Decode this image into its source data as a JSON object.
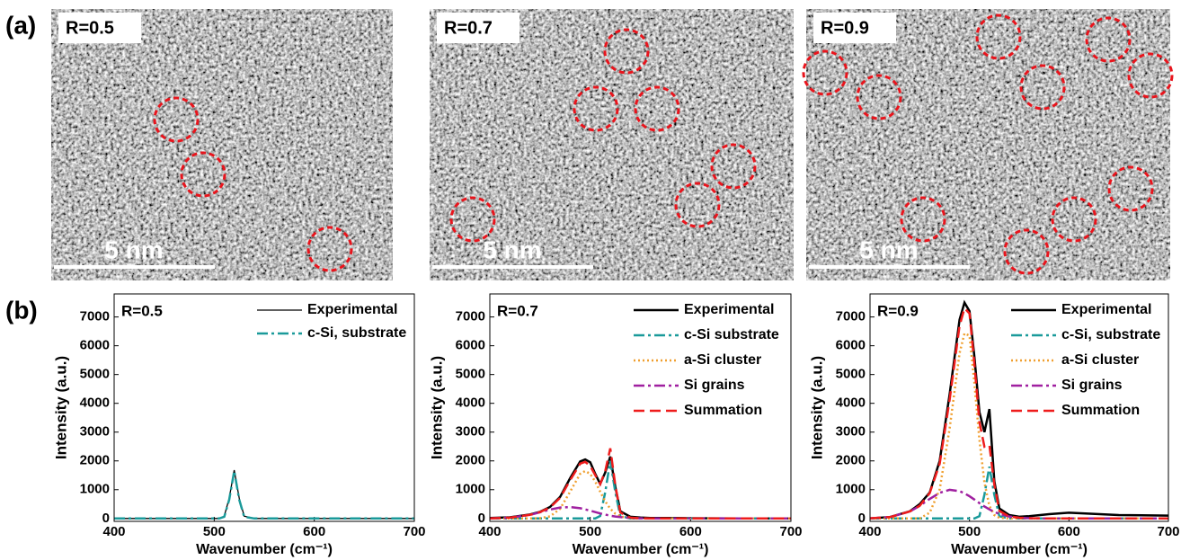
{
  "figure": {
    "panel_a_label": "(a)",
    "panel_b_label": "(b)",
    "images": [
      {
        "label": "R=0.5",
        "scale_bar": "5 nm"
      },
      {
        "label": "R=0.7",
        "scale_bar": "5 nm"
      },
      {
        "label": "R=0.9",
        "scale_bar": "5 nm"
      }
    ]
  },
  "chart_data": [
    {
      "type": "line",
      "annotation": "R=0.5",
      "x_label": "Wavenumber (cm⁻¹)",
      "y_label": "Intensity (a.u.)",
      "xlim": [
        400,
        700
      ],
      "xticks": [
        400,
        500,
        600,
        700
      ],
      "ylim": [
        -100,
        7800
      ],
      "yticks": [
        0,
        1000,
        2000,
        3000,
        4000,
        5000,
        6000,
        7000
      ],
      "legend": "upper right",
      "x": [
        400,
        420,
        440,
        450,
        460,
        470,
        480,
        490,
        495,
        500,
        505,
        510,
        515,
        520,
        525,
        530,
        540,
        550,
        560,
        580,
        600,
        650,
        700
      ],
      "series": [
        {
          "name": "Experimental",
          "color": "#000000",
          "dash": "solid",
          "linewidth": 1.3,
          "values": [
            0,
            0,
            0,
            0,
            0,
            0,
            0,
            0,
            0,
            0,
            0,
            80,
            700,
            1680,
            700,
            80,
            0,
            0,
            0,
            0,
            0,
            0,
            0
          ]
        },
        {
          "name": "c-Si, substrate",
          "color": "#1a9a9a",
          "dash": "dashdot",
          "linewidth": 2.5,
          "values": [
            0,
            0,
            0,
            0,
            0,
            0,
            0,
            0,
            0,
            0,
            0,
            60,
            650,
            1650,
            650,
            60,
            0,
            0,
            0,
            0,
            0,
            0,
            0
          ]
        }
      ]
    },
    {
      "type": "line",
      "annotation": "R=0.7",
      "x_label": "Wavenumber (cm⁻¹)",
      "y_label": "Intensity (a.u.)",
      "xlim": [
        400,
        700
      ],
      "xticks": [
        400,
        500,
        600,
        700
      ],
      "ylim": [
        -100,
        7800
      ],
      "yticks": [
        0,
        1000,
        2000,
        3000,
        4000,
        5000,
        6000,
        7000
      ],
      "legend": "upper right",
      "x": [
        400,
        420,
        440,
        450,
        460,
        470,
        480,
        490,
        495,
        500,
        505,
        510,
        515,
        520,
        525,
        530,
        540,
        550,
        560,
        580,
        600,
        650,
        700
      ],
      "series": [
        {
          "name": "Experimental",
          "color": "#000000",
          "dash": "solid",
          "linewidth": 2.5,
          "values": [
            20,
            40,
            140,
            230,
            400,
            750,
            1400,
            1980,
            2050,
            1950,
            1550,
            1200,
            1600,
            2150,
            1100,
            250,
            60,
            30,
            20,
            20,
            10,
            0,
            0
          ]
        },
        {
          "name": "c-Si substrate",
          "color": "#1a9a9a",
          "dash": "dashdot",
          "linewidth": 2.5,
          "values": [
            0,
            0,
            0,
            0,
            0,
            0,
            0,
            0,
            0,
            0,
            0,
            88,
            916,
            2000,
            916,
            88,
            0,
            0,
            0,
            0,
            0,
            0,
            0
          ]
        },
        {
          "name": "a-Si cluster",
          "color": "#f0a030",
          "dash": "dotted",
          "linewidth": 2.5,
          "values": [
            0,
            0,
            0,
            9,
            73,
            337,
            930,
            1550,
            1650,
            1550,
            1280,
            930,
            594,
            337,
            166,
            73,
            9,
            0,
            0,
            0,
            0,
            0,
            0
          ]
        },
        {
          "name": "Si grains",
          "color": "#a020a0",
          "dash": "dashdot",
          "linewidth": 2.5,
          "values": [
            3,
            27,
            126,
            214,
            309,
            380,
            398,
            356,
            316,
            272,
            223,
            176,
            134,
            98,
            68,
            46,
            18,
            6,
            0,
            0,
            0,
            0,
            0
          ]
        },
        {
          "name": "Summation",
          "color": "#ee1c1c",
          "dash": "dashed",
          "linewidth": 2.5,
          "values": [
            3,
            27,
            126,
            223,
            382,
            717,
            1328,
            1906,
            1966,
            1822,
            1503,
            1194,
            1644,
            2435,
            1150,
            207,
            27,
            6,
            0,
            0,
            0,
            0,
            0
          ]
        }
      ]
    },
    {
      "type": "line",
      "annotation": "R=0.9",
      "x_label": "Wavenumber (cm⁻¹)",
      "y_label": "Intensity (a.u.)",
      "xlim": [
        400,
        700
      ],
      "xticks": [
        400,
        500,
        600,
        700
      ],
      "ylim": [
        -100,
        7800
      ],
      "yticks": [
        0,
        1000,
        2000,
        3000,
        4000,
        5000,
        6000,
        7000
      ],
      "legend": "upper right",
      "x": [
        400,
        420,
        440,
        450,
        460,
        470,
        480,
        490,
        495,
        500,
        505,
        510,
        515,
        520,
        525,
        530,
        540,
        550,
        560,
        580,
        600,
        650,
        700
      ],
      "series": [
        {
          "name": "Experimental",
          "color": "#000000",
          "dash": "solid",
          "linewidth": 2.5,
          "values": [
            0,
            50,
            250,
            500,
            900,
            2000,
            4300,
            6900,
            7500,
            7200,
            5600,
            3700,
            3000,
            3800,
            1300,
            350,
            120,
            60,
            80,
            150,
            200,
            120,
            100
          ]
        },
        {
          "name": "c-Si, substrate",
          "color": "#1a9a9a",
          "dash": "dashdot",
          "linewidth": 2.5,
          "values": [
            0,
            0,
            0,
            0,
            0,
            0,
            0,
            0,
            0,
            0,
            0,
            79,
            825,
            1800,
            825,
            79,
            0,
            0,
            0,
            0,
            0,
            0,
            0
          ]
        },
        {
          "name": "a-Si cluster",
          "color": "#f0a030",
          "dash": "dotted",
          "linewidth": 2.5,
          "values": [
            0,
            0,
            0,
            0,
            200,
            1010,
            3110,
            5740,
            6430,
            6350,
            4690,
            2740,
            1250,
            440,
            120,
            25,
            0,
            0,
            0,
            0,
            0,
            0,
            0
          ]
        },
        {
          "name": "Si grains",
          "color": "#a020a0",
          "dash": "dashdot",
          "linewidth": 2.5,
          "values": [
            5,
            46,
            244,
            440,
            680,
            890,
            997,
            950,
            874,
            772,
            655,
            534,
            418,
            315,
            227,
            158,
            68,
            25,
            8,
            0,
            0,
            0,
            0
          ]
        },
        {
          "name": "Summation",
          "color": "#ee1c1c",
          "dash": "dashed",
          "linewidth": 2.5,
          "values": [
            5,
            46,
            244,
            440,
            880,
            1900,
            4107,
            6690,
            7304,
            7122,
            5345,
            3353,
            2493,
            2555,
            1172,
            262,
            68,
            25,
            8,
            0,
            0,
            0,
            0
          ]
        }
      ]
    }
  ]
}
